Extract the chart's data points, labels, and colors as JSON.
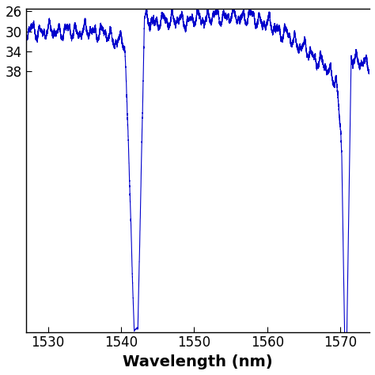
{
  "line_color": "#0000CC",
  "line_width": 0.8,
  "xlabel": "Wavelength (nm)",
  "xlabel_fontsize": 14,
  "xlabel_fontweight": "bold",
  "xlim": [
    1527,
    1574
  ],
  "ylim": [
    -90,
    -25.5
  ],
  "xticks": [
    1530,
    1540,
    1550,
    1560,
    1570
  ],
  "yticks": [
    -26,
    -30,
    -34,
    -38
  ],
  "ytick_labels": [
    "26",
    "30",
    "34",
    "38"
  ],
  "background_color": "#ffffff",
  "seed": 42
}
